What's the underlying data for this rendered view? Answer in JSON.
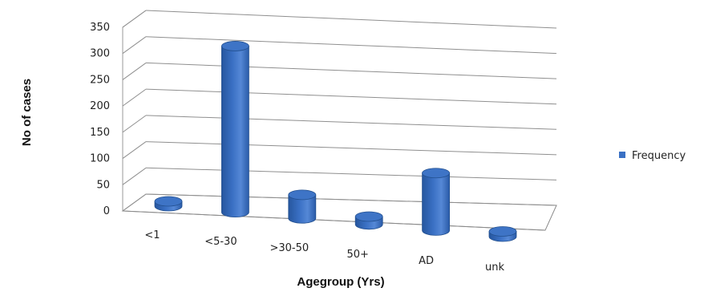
{
  "chart_data": {
    "type": "bar",
    "style": "3d-cylinder",
    "categories": [
      "<1",
      "<5-30",
      ">30-50",
      "50+",
      "AD",
      "unk"
    ],
    "series": [
      {
        "name": "Frequency",
        "values": [
          8,
          318,
          45,
          15,
          110,
          10
        ],
        "color": "#3A70C4"
      }
    ],
    "xlabel": "Agegroup (Yrs)",
    "ylabel": "No of cases",
    "ylim": [
      0,
      350
    ],
    "yticks": [
      0,
      50,
      100,
      150,
      200,
      250,
      300,
      350
    ],
    "grid": true,
    "legend_position": "right"
  }
}
